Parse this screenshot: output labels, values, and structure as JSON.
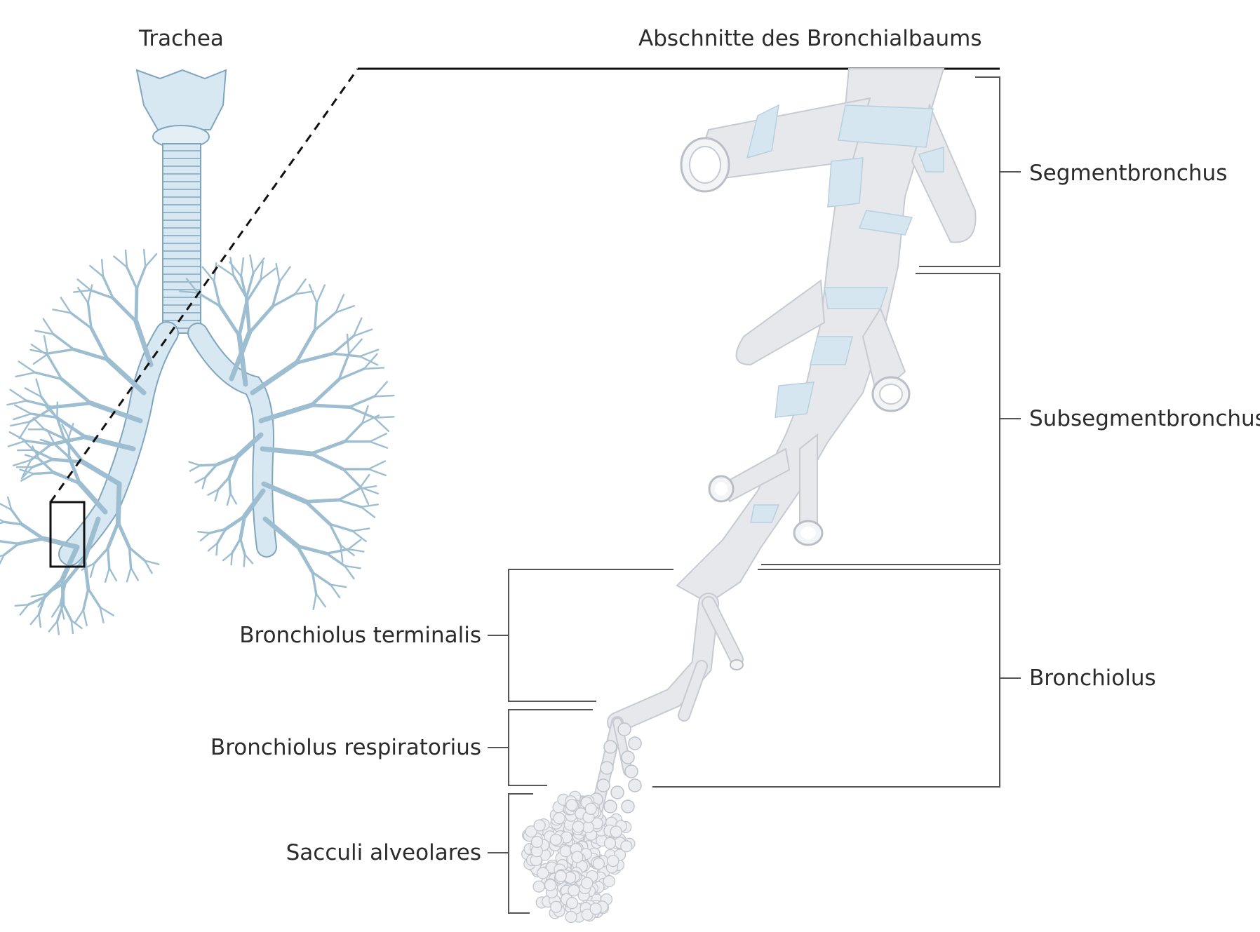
{
  "diagram": {
    "titles": {
      "left": "Trachea",
      "right": "Abschnitte des Bronchialbaums"
    },
    "labels": {
      "segmentbronchus": "Segmentbronchus",
      "subsegmentbronchus": "Subsegmentbronchus",
      "bronchiolus": "Bronchiolus",
      "bronchiolus_terminalis": "Bronchiolus terminalis",
      "bronchiolus_respiratorius": "Bronchiolus respiratorius",
      "sacculi_alveolares": "Sacculi alveolares"
    },
    "colors": {
      "trachea_fill": "#d8e8f2",
      "trachea_stroke": "#7fa6bd",
      "tube_fill": "#e6e8ec",
      "tube_stroke": "#b9bec6",
      "cartilage_fill": "#d6e6f0",
      "bracket": "#555555",
      "text": "#2b2b2b"
    }
  }
}
